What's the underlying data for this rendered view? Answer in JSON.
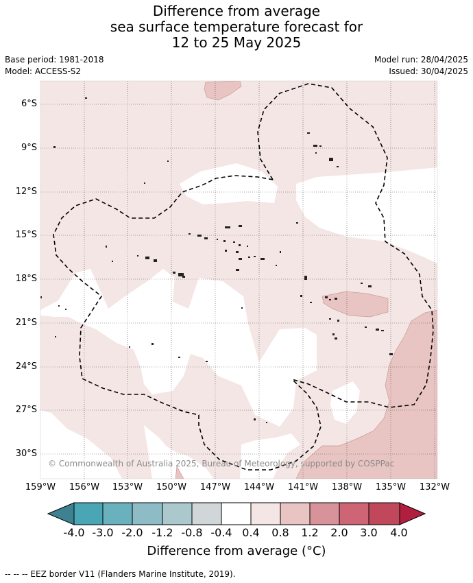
{
  "title": {
    "line1": "Difference from average",
    "line2": "sea surface temperature forecast for",
    "line3": "12 to 25 May 2025"
  },
  "meta": {
    "base_period": "Base period: 1981-2018",
    "model": "Model: ACCESS-S2",
    "model_run": "Model run: 28/04/2025",
    "issued": "Issued: 30/04/2025"
  },
  "map": {
    "lat_labels": [
      "6°S",
      "9°S",
      "12°S",
      "15°S",
      "18°S",
      "21°S",
      "24°S",
      "27°S",
      "30°S"
    ],
    "lon_labels": [
      "159°W",
      "156°W",
      "153°W",
      "150°W",
      "147°W",
      "144°W",
      "141°W",
      "138°W",
      "135°W",
      "132°W"
    ],
    "credit": "© Commonwealth of Australia 2025, Bureau of Meteorology, supported by COSPPac",
    "colors": {
      "band_0p4_0p8": "#f4e6e5",
      "band_0p8_1p2": "#e8c4c2",
      "coast": "#111111",
      "eez": "#000000"
    }
  },
  "colorbar": {
    "title": "Difference from average (°C)",
    "labels": [
      "-4.0",
      "-3.0",
      "-2.0",
      "-1.2",
      "-0.8",
      "-0.4",
      "0.4",
      "0.8",
      "1.2",
      "2.0",
      "3.0",
      "4.0"
    ],
    "colors": [
      "#3e8190",
      "#4aa5b5",
      "#6ab1be",
      "#8ebcc6",
      "#abc9cd",
      "#d1d6d8",
      "#ffffff",
      "#f4e6e5",
      "#e8c4c2",
      "#d8929a",
      "#cd6575",
      "#c0485a",
      "#b11f3f"
    ]
  },
  "footer": "--  --  -- EEZ border V11 (Flanders Marine Institute, 2019)."
}
